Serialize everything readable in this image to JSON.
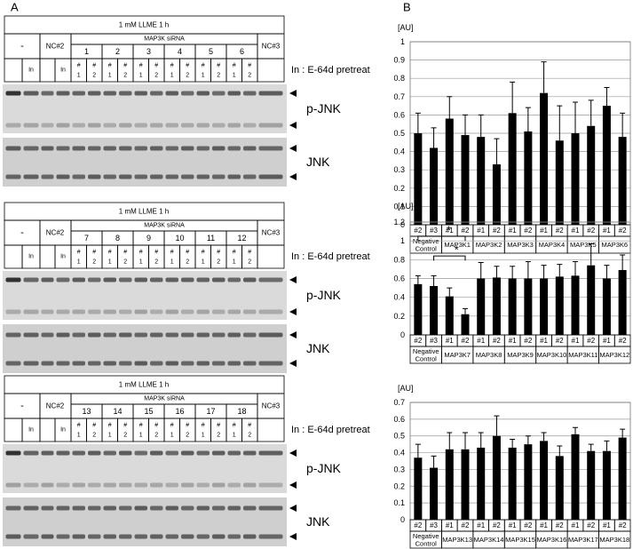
{
  "panel_a": {
    "label": "A",
    "inhibitor": "In",
    "hash": "#",
    "ids": [
      "1",
      "2"
    ],
    "blocks": [
      {
        "treatment": "1 mM LLME 1 h",
        "minus": "-",
        "nc_left": "NC#2",
        "sirna": "MAP3K siRNA",
        "targets": [
          "1",
          "2",
          "3",
          "4",
          "5",
          "6"
        ],
        "nc_right": "NC#3",
        "note": "In : E-64d pretreat",
        "band_top": "p-JNK",
        "band_bottom": "JNK"
      },
      {
        "treatment": "1 mM LLME 1 h",
        "minus": "-",
        "nc_left": "NC#2",
        "sirna": "MAP3K siRNA",
        "targets": [
          "7",
          "8",
          "9",
          "10",
          "11",
          "12"
        ],
        "nc_right": "NC#3",
        "note": "In : E-64d pretreat",
        "band_top": "p-JNK",
        "band_bottom": "JNK"
      },
      {
        "treatment": "1 mM LLME 1 h",
        "minus": "-",
        "nc_left": "NC#2",
        "sirna": "MAP3K siRNA",
        "targets": [
          "13",
          "14",
          "15",
          "16",
          "17",
          "18"
        ],
        "nc_right": "NC#3",
        "note": "In : E-64d pretreat",
        "band_top": "p-JNK",
        "band_bottom": "JNK"
      }
    ]
  },
  "panel_b": {
    "label": "B"
  },
  "chart_data": [
    {
      "type": "bar",
      "y_label": "[AU]",
      "categories": [
        "#2",
        "#3",
        "#1",
        "#2",
        "#1",
        "#2",
        "#1",
        "#2",
        "#1",
        "#2",
        "#1",
        "#2",
        "#1",
        "#2"
      ],
      "groups": [
        [
          "Negative",
          "Control"
        ],
        [
          "MAP3K1"
        ],
        [
          "MAP3K2"
        ],
        [
          "MAP3K3"
        ],
        [
          "MAP3K4"
        ],
        [
          "MAP3K5"
        ],
        [
          "MAP3K6"
        ]
      ],
      "values": [
        0.5,
        0.42,
        0.58,
        0.49,
        0.48,
        0.33,
        0.61,
        0.51,
        0.72,
        0.46,
        0.5,
        0.54,
        0.65,
        0.48
      ],
      "errors": [
        0.11,
        0.11,
        0.12,
        0.11,
        0.12,
        0.14,
        0.17,
        0.13,
        0.17,
        0.19,
        0.17,
        0.14,
        0.1,
        0.13
      ],
      "color": "#000000",
      "ylim": [
        0,
        1
      ],
      "yticks": [
        0,
        0.1,
        0.2,
        0.3,
        0.4,
        0.5,
        0.6,
        0.7,
        0.8,
        0.9,
        1
      ],
      "grid": true
    },
    {
      "type": "bar",
      "y_label": "[AU]",
      "categories": [
        "#2",
        "#3",
        "#1",
        "#2",
        "#1",
        "#2",
        "#1",
        "#2",
        "#1",
        "#2",
        "#1",
        "#2",
        "#1",
        "#2"
      ],
      "groups": [
        [
          "Negative",
          "Control"
        ],
        [
          "MAP3K7"
        ],
        [
          "MAP3K8"
        ],
        [
          "MAP3K9"
        ],
        [
          "MAP3K10"
        ],
        [
          "MAP3K11"
        ],
        [
          "MAP3K12"
        ]
      ],
      "values": [
        0.54,
        0.52,
        0.41,
        0.22,
        0.6,
        0.61,
        0.6,
        0.6,
        0.6,
        0.62,
        0.63,
        0.74,
        0.6,
        0.69
      ],
      "errors": [
        0.09,
        0.11,
        0.09,
        0.06,
        0.17,
        0.12,
        0.13,
        0.18,
        0.14,
        0.13,
        0.15,
        0.23,
        0.14,
        0.16
      ],
      "annotations": [
        "*",
        "*"
      ],
      "color": "#000000",
      "ylim": [
        0,
        1.2
      ],
      "yticks": [
        0,
        0.2,
        0.4,
        0.6,
        0.8,
        1,
        1.2
      ],
      "grid": true
    },
    {
      "type": "bar",
      "y_label": "[AU]",
      "categories": [
        "#2",
        "#3",
        "#1",
        "#2",
        "#1",
        "#2",
        "#1",
        "#2",
        "#1",
        "#2",
        "#1",
        "#2",
        "#1",
        "#2"
      ],
      "groups": [
        [
          "Negative",
          "Control"
        ],
        [
          "MAP3K13"
        ],
        [
          "MAP3K14"
        ],
        [
          "MAP3K15"
        ],
        [
          "MAP3K16"
        ],
        [
          "MAP3K17"
        ],
        [
          "MAP3K18"
        ]
      ],
      "values": [
        0.37,
        0.31,
        0.42,
        0.42,
        0.43,
        0.5,
        0.43,
        0.45,
        0.47,
        0.38,
        0.51,
        0.41,
        0.41,
        0.49
      ],
      "errors": [
        0.08,
        0.07,
        0.1,
        0.1,
        0.09,
        0.12,
        0.05,
        0.05,
        0.05,
        0.06,
        0.04,
        0.04,
        0.06,
        0.05
      ],
      "color": "#000000",
      "ylim": [
        0,
        0.7
      ],
      "yticks": [
        0,
        0.1,
        0.2,
        0.3,
        0.4,
        0.5,
        0.6,
        0.7
      ],
      "grid": true
    }
  ]
}
